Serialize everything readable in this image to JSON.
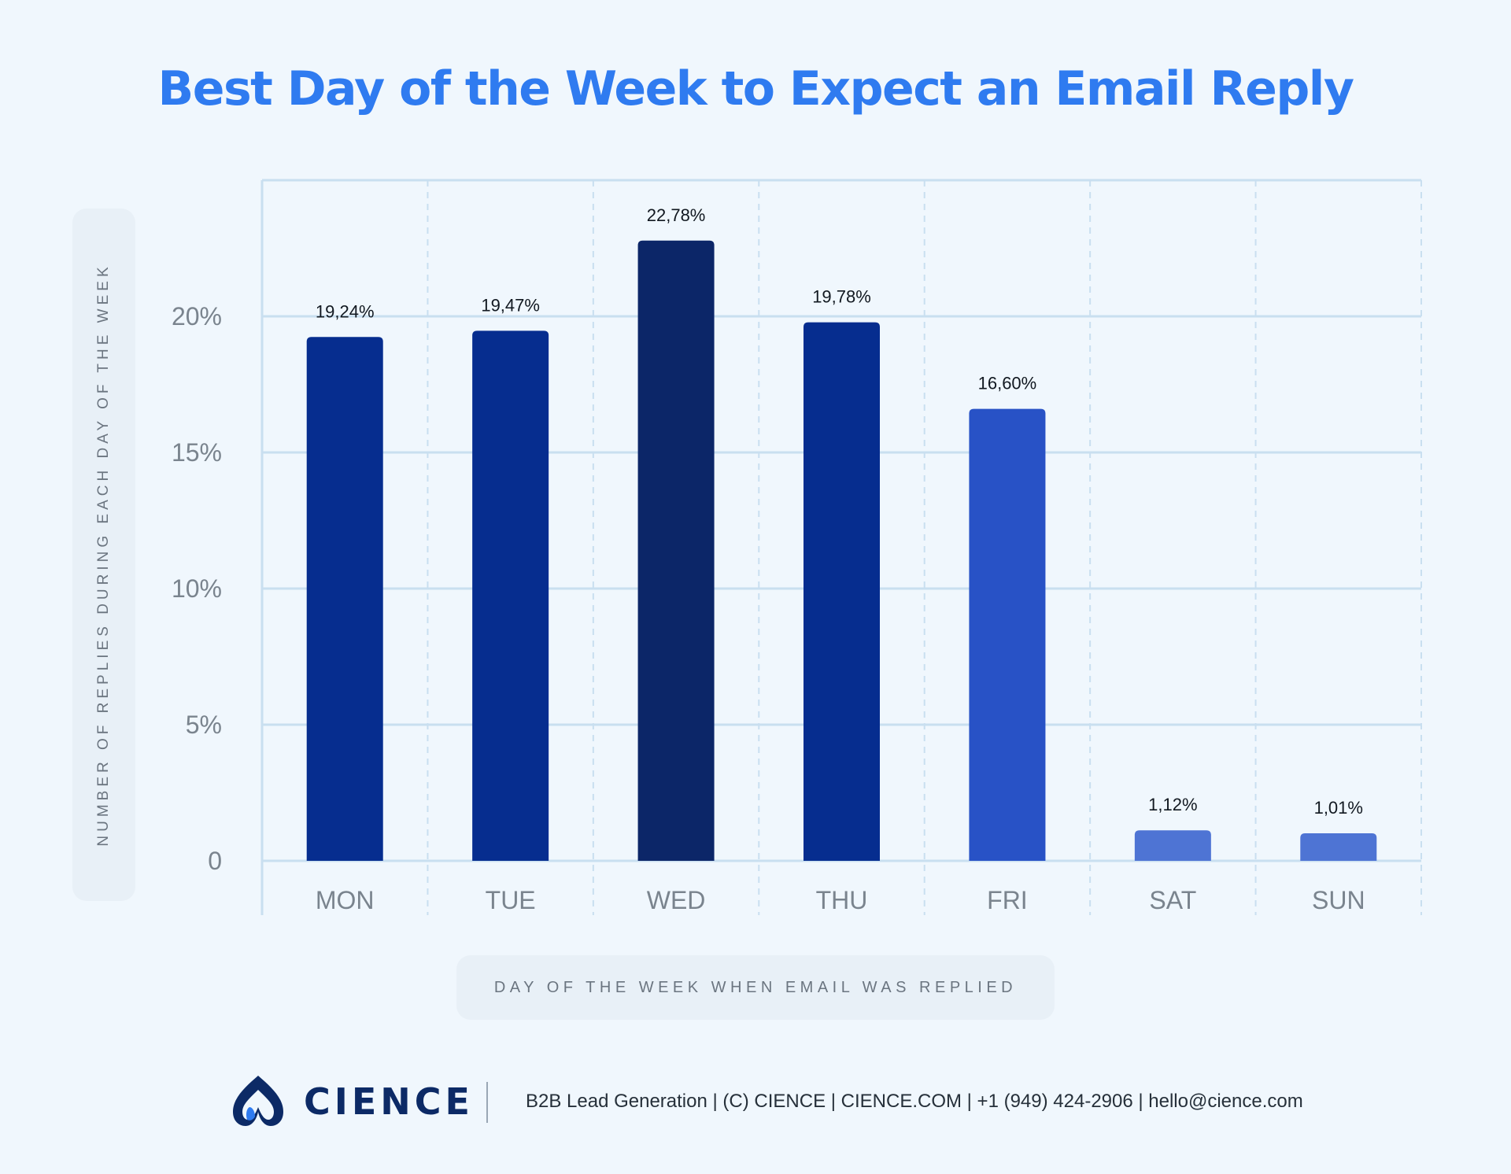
{
  "title": "Best Day of the Week to Expect an Email Reply",
  "footer": {
    "brand": "CIENCE",
    "info": "B2B Lead Generation | (C) CIENCE | CIENCE.COM | +1 (949) 424-2906 | hello@cience.com",
    "logo_icon": "cience-logo-icon"
  },
  "colors": {
    "title": "#2f7bf0",
    "background": "#f0f7fd",
    "gridline": "#c9dff0",
    "axis_text": "#7a848e"
  },
  "chart_data": {
    "type": "bar",
    "title": "Best Day of the Week to Expect an Email Reply",
    "xlabel": "DAY OF THE WEEK WHEN EMAIL WAS REPLIED",
    "ylabel": "NUMBER OF REPLIES DURING EACH DAY OF THE WEEK",
    "categories": [
      "MON",
      "TUE",
      "WED",
      "THU",
      "FRI",
      "SAT",
      "SUN"
    ],
    "values": [
      19.24,
      19.47,
      22.78,
      19.78,
      16.6,
      1.12,
      1.01
    ],
    "data_labels": [
      "19,24%",
      "19,47%",
      "22,78%",
      "19,78%",
      "16,60%",
      "1,12%",
      "1,01%"
    ],
    "bar_colors": [
      "#062d8f",
      "#062d8f",
      "#0c2668",
      "#062d8f",
      "#2852c6",
      "#4e74d4",
      "#4e74d4"
    ],
    "yticks": [
      0,
      5,
      10,
      15,
      20
    ],
    "ytick_labels": [
      "0",
      "5%",
      "10%",
      "15%",
      "20%"
    ],
    "ylim": [
      0,
      25
    ],
    "grid": true,
    "legend": "none"
  }
}
